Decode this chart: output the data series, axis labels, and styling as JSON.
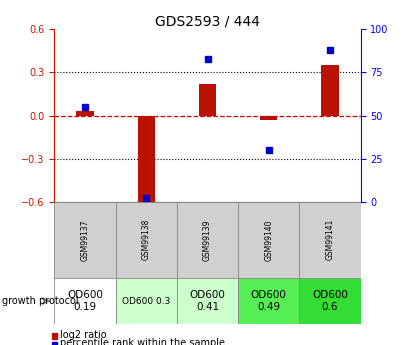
{
  "title": "GDS2593 / 444",
  "samples": [
    "GSM99137",
    "GSM99138",
    "GSM99139",
    "GSM99140",
    "GSM99141"
  ],
  "log2_ratio": [
    0.03,
    -0.62,
    0.22,
    -0.03,
    0.35
  ],
  "percentile_rank": [
    55,
    2,
    83,
    30,
    88
  ],
  "ylim_left": [
    -0.6,
    0.6
  ],
  "ylim_right": [
    0,
    100
  ],
  "yticks_left": [
    -0.6,
    -0.3,
    0.0,
    0.3,
    0.6
  ],
  "yticks_right": [
    0,
    25,
    50,
    75,
    100
  ],
  "bar_color": "#bb1100",
  "dot_color": "#0000cc",
  "zero_line_color": "#cc0000",
  "grid_color": "#000000",
  "growth_protocol": [
    "OD600\n0.19",
    "OD600 0.3",
    "OD600\n0.41",
    "OD600\n0.49",
    "OD600\n0.6"
  ],
  "cell_colors": [
    "#ffffff",
    "#ccffcc",
    "#ccffcc",
    "#55ee55",
    "#33dd33"
  ],
  "cell_fontsize": [
    7.5,
    6.5,
    7.5,
    7.5,
    7.5
  ],
  "label_log2": "log2 ratio",
  "label_pct": "percentile rank within the sample",
  "growth_label": "growth protocol"
}
